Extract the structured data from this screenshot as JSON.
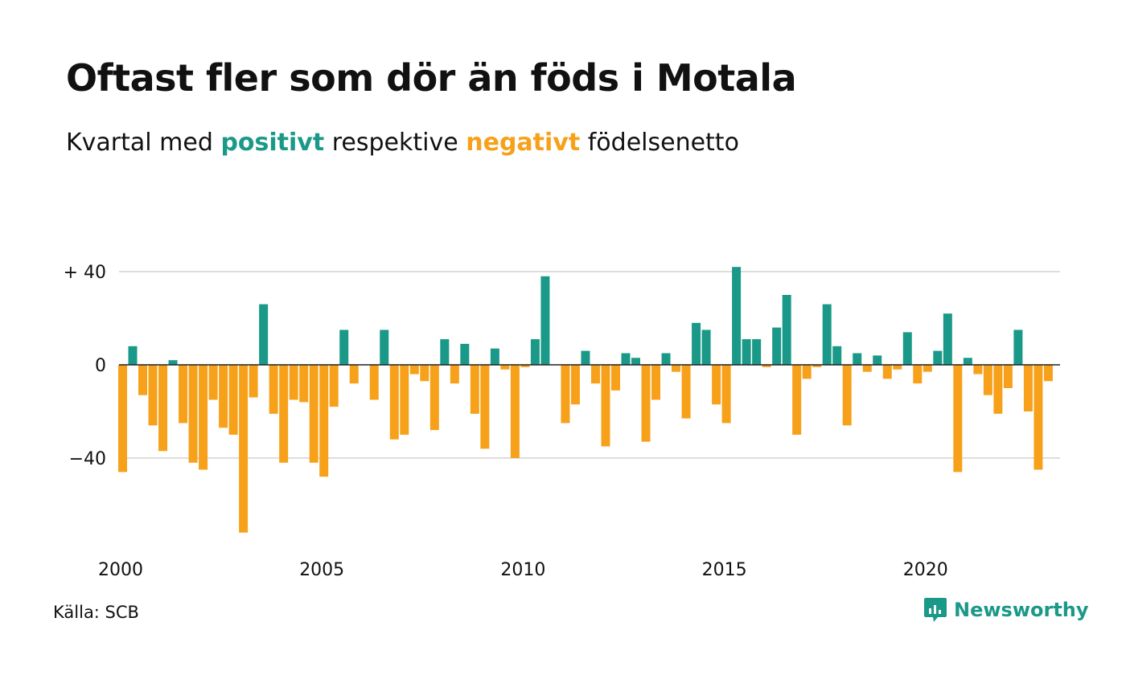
{
  "title": "Oftast fler som dör än föds i Motala",
  "subtitle": {
    "prefix": "Kvartal med",
    "positive_word": "positivt",
    "middle": "respektive",
    "negative_word": "negativt",
    "suffix": "födelsenetto"
  },
  "source": "Källa: SCB",
  "brand": "Newsworthy",
  "colors": {
    "positive": "#1a9988",
    "negative": "#f7a11a",
    "grid": "#dddddd",
    "zero": "#222222",
    "text": "#111111"
  },
  "chart_data": {
    "type": "bar",
    "title": "Oftast fler som dör än föds i Motala",
    "subtitle": "Kvartal med positivt respektive negativt födelsenetto",
    "x_start": "2000 Q1",
    "x_tick_labels": [
      "2000",
      "2005",
      "2010",
      "2015",
      "2020"
    ],
    "y_tick_labels": [
      "+ 40",
      "0",
      "−40"
    ],
    "y_ticks": [
      40,
      0,
      -40
    ],
    "ylim": [
      -72,
      42
    ],
    "grid": true,
    "series": [
      {
        "values": [
          -46,
          8,
          -13,
          -26,
          -37,
          2,
          -25,
          -42,
          -45,
          -15,
          -27,
          -30,
          -72,
          -14,
          26,
          -21,
          -42,
          -15,
          -16,
          -42,
          -48,
          -18,
          15,
          -8,
          0,
          -15,
          15,
          -32,
          -30,
          -4,
          -7,
          -28,
          11,
          -8,
          9,
          -21,
          -36,
          7,
          -2,
          -40,
          -1,
          11,
          38,
          0,
          -25,
          -17,
          6,
          -8,
          -35,
          -11,
          5,
          3,
          -33,
          -15,
          5,
          -3,
          -23,
          18,
          15,
          -17,
          -25,
          42,
          11,
          11,
          -1,
          16,
          30,
          -30,
          -6,
          -1,
          26,
          8,
          -26,
          5,
          -3,
          4,
          -6,
          -2,
          14,
          -8,
          -3,
          6,
          22,
          -46,
          3,
          -4,
          -13,
          -21,
          -10,
          15,
          -20,
          -45,
          -7
        ]
      }
    ]
  }
}
